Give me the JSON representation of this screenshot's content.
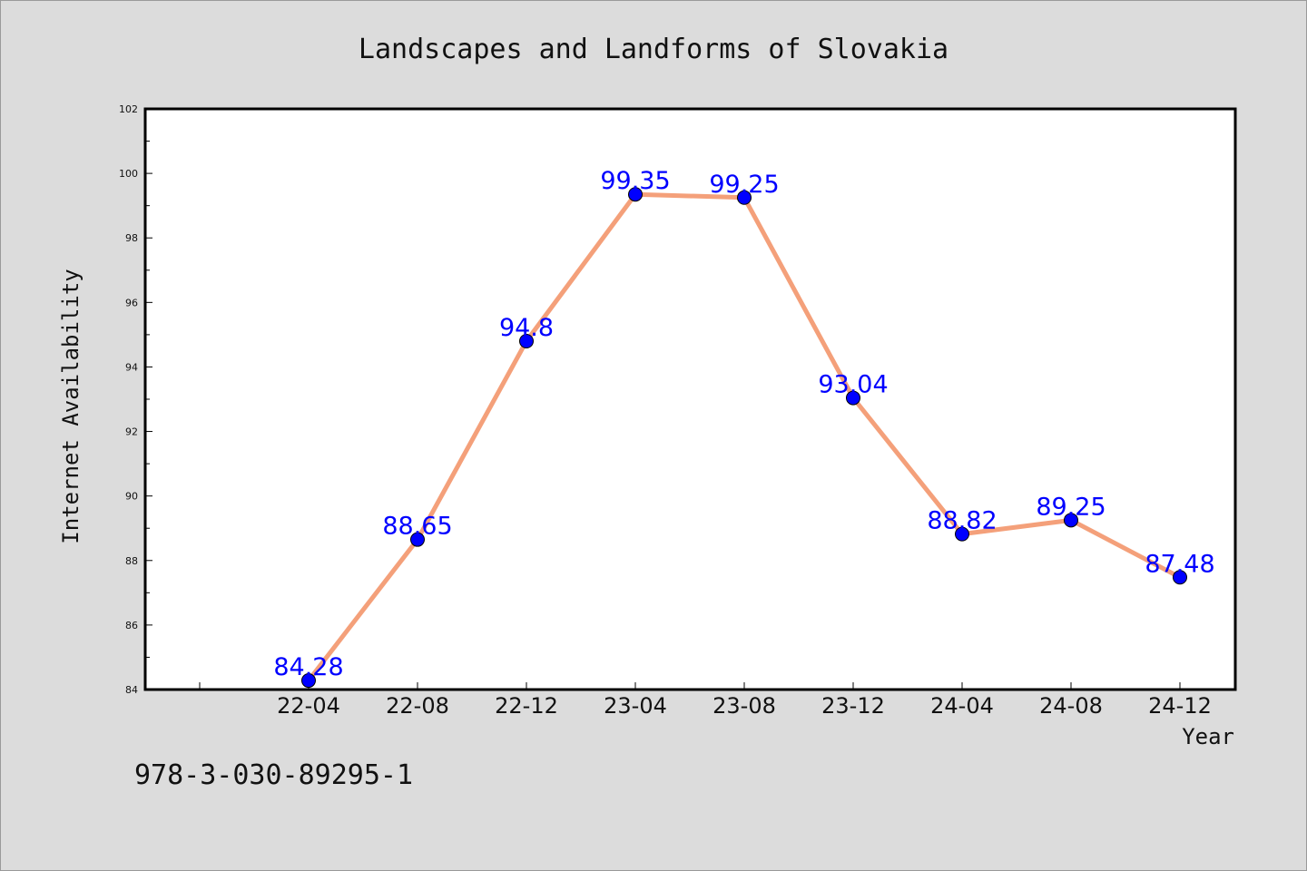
{
  "chart_data": {
    "type": "line",
    "title": "Landscapes and Landforms of Slovakia",
    "xlabel": "Year",
    "ylabel": "Internet Availability",
    "categories": [
      "22-04",
      "22-08",
      "22-12",
      "23-04",
      "23-08",
      "23-12",
      "24-04",
      "24-08",
      "24-12"
    ],
    "series": [
      {
        "values": [
          84.28,
          88.65,
          94.8,
          99.35,
          99.25,
          93.04,
          88.82,
          89.25,
          87.48
        ],
        "labels": [
          "84.28",
          "88.65",
          "94.8",
          "99.35",
          "99.25",
          "93.04",
          "88.82",
          "89.25",
          "87.48"
        ]
      }
    ],
    "ylim": [
      84,
      102
    ],
    "yticks": [
      "84",
      "86",
      "88",
      "90",
      "92",
      "94",
      "96",
      "98",
      "100",
      "102"
    ],
    "grid": false,
    "line_color": "#f4a07a",
    "marker_color": "#0000ff",
    "label_color": "#0000ff"
  },
  "footer": {
    "text": "978-3-030-89295-1"
  }
}
